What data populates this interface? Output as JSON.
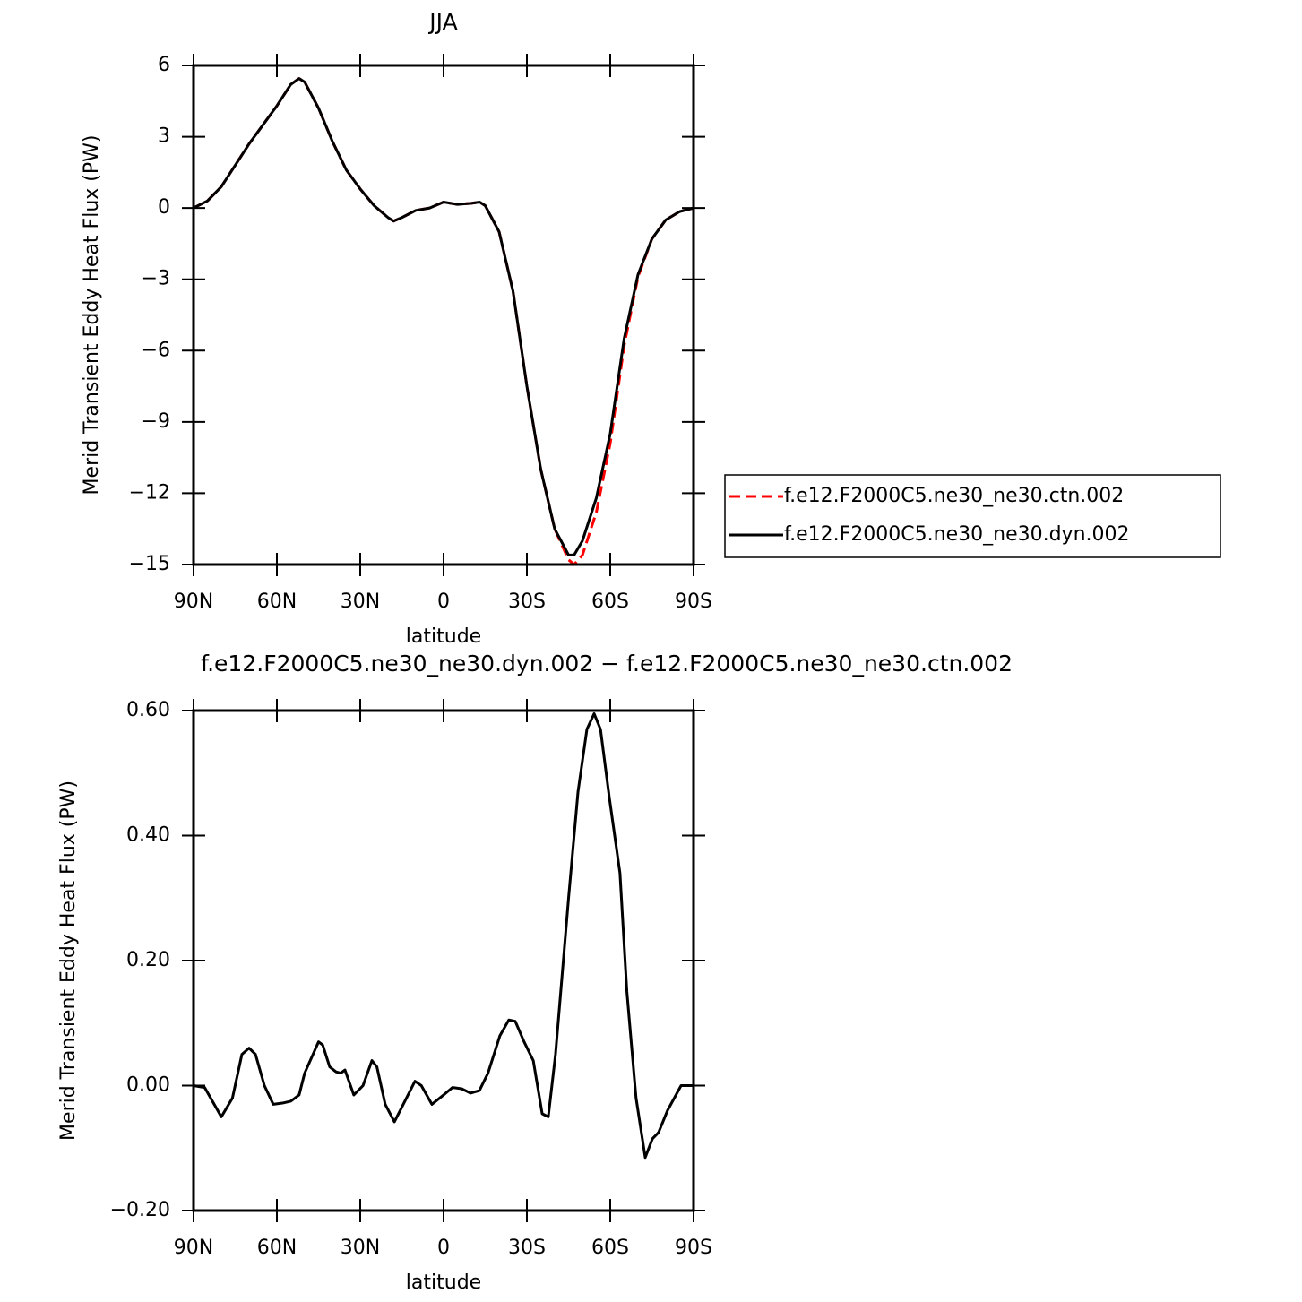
{
  "chart_data": [
    {
      "type": "line",
      "title": "JJA",
      "xlabel": "latitude",
      "ylabel": "Merid Transient Eddy Heat Flux (PW)",
      "x": [
        90,
        85,
        80,
        75,
        70,
        65,
        60,
        55,
        52,
        50,
        45,
        40,
        35,
        30,
        25,
        20,
        18,
        15,
        10,
        5,
        0,
        -5,
        -10,
        -13,
        -15,
        -20,
        -25,
        -30,
        -35,
        -40,
        -45,
        -47,
        -50,
        -55,
        -60,
        -65,
        -70,
        -75,
        -80,
        -85,
        -90
      ],
      "series": [
        {
          "name": "f.e12.F2000C5.ne30_ne30.ctn.002",
          "color": "#ff0000",
          "linestyle": "dashed",
          "values": [
            0,
            0.3,
            0.9,
            1.8,
            2.7,
            3.5,
            4.3,
            5.2,
            5.45,
            5.3,
            4.2,
            2.8,
            1.6,
            0.8,
            0.1,
            -0.4,
            -0.55,
            -0.4,
            -0.1,
            0.0,
            0.25,
            0.15,
            0.2,
            0.25,
            0.1,
            -1.0,
            -3.5,
            -7.5,
            -11.0,
            -13.5,
            -14.8,
            -15.0,
            -14.6,
            -12.8,
            -9.9,
            -5.8,
            -2.9,
            -1.3,
            -0.5,
            -0.15,
            0
          ]
        },
        {
          "name": "f.e12.F2000C5.ne30_ne30.dyn.002",
          "color": "#000000",
          "linestyle": "solid",
          "values": [
            0,
            0.3,
            0.9,
            1.8,
            2.7,
            3.5,
            4.3,
            5.2,
            5.45,
            5.3,
            4.2,
            2.8,
            1.6,
            0.8,
            0.1,
            -0.4,
            -0.55,
            -0.4,
            -0.1,
            0.0,
            0.25,
            0.15,
            0.2,
            0.25,
            0.1,
            -1.0,
            -3.5,
            -7.5,
            -11.0,
            -13.5,
            -14.6,
            -14.6,
            -14.0,
            -12.2,
            -9.5,
            -5.5,
            -2.8,
            -1.3,
            -0.5,
            -0.15,
            0
          ]
        }
      ],
      "xlim": [
        90,
        -90
      ],
      "xticks": [
        {
          "value": 90,
          "label": "90N"
        },
        {
          "value": 60,
          "label": "60N"
        },
        {
          "value": 30,
          "label": "30N"
        },
        0,
        {
          "value": -30,
          "label": "30S"
        },
        {
          "value": -60,
          "label": "60S"
        },
        {
          "value": -90,
          "label": "90S"
        }
      ],
      "ylim": [
        -15,
        6
      ],
      "yticks": [
        {
          "value": -15,
          "label": "−15"
        },
        {
          "value": -12,
          "label": "−12"
        },
        {
          "value": -9,
          "label": "−9"
        },
        {
          "value": -6,
          "label": "−6"
        },
        {
          "value": -3,
          "label": "−3"
        },
        0,
        3,
        6
      ],
      "legend": "right",
      "grid": false
    },
    {
      "type": "line",
      "title": "f.e12.F2000C5.ne30_ne30.dyn.002 − f.e12.F2000C5.ne30_ne30.ctn.002",
      "xlabel": "latitude",
      "ylabel": "Merid Transient Eddy Heat Flux (PW)",
      "x": [
        90,
        86,
        80,
        76,
        72.6,
        70,
        67.7,
        64.5,
        61.3,
        58,
        55,
        52,
        50,
        45,
        43.5,
        41,
        38.7,
        37,
        35.5,
        32.3,
        29,
        25.8,
        24,
        21,
        17.7,
        14.5,
        10.3,
        8,
        4.2,
        0,
        -3.2,
        -6.5,
        -9.7,
        -12.9,
        -16,
        -20.3,
        -23.5,
        -25.8,
        -29,
        -32.3,
        -35.5,
        -37.7,
        -40.3,
        -45,
        -48.4,
        -51.6,
        -54.2,
        -56.5,
        -59.7,
        -63.5,
        -66,
        -69.3,
        -72.6,
        -75.2,
        -77.4,
        -80.6,
        -85.5,
        -90
      ],
      "series": [
        {
          "color": "#000000",
          "linestyle": "solid",
          "values": [
            0,
            -0.003,
            -0.05,
            -0.02,
            0.05,
            0.06,
            0.05,
            0.0,
            -0.03,
            -0.028,
            -0.025,
            -0.015,
            0.02,
            0.07,
            0.065,
            0.03,
            0.022,
            0.02,
            0.025,
            -0.015,
            0.0,
            0.04,
            0.03,
            -0.03,
            -0.058,
            -0.03,
            0.007,
            0.0,
            -0.03,
            -0.015,
            -0.003,
            -0.005,
            -0.012,
            -0.008,
            0.02,
            0.08,
            0.105,
            0.103,
            0.07,
            0.04,
            -0.045,
            -0.05,
            0.05,
            0.3,
            0.47,
            0.57,
            0.595,
            0.57,
            0.46,
            0.34,
            0.15,
            -0.02,
            -0.115,
            -0.085,
            -0.075,
            -0.04,
            0.0,
            0
          ]
        }
      ],
      "xlim": [
        90,
        -90
      ],
      "xticks": [
        {
          "value": 90,
          "label": "90N"
        },
        {
          "value": 60,
          "label": "60N"
        },
        {
          "value": 30,
          "label": "30N"
        },
        0,
        {
          "value": -30,
          "label": "30S"
        },
        {
          "value": -60,
          "label": "60S"
        },
        {
          "value": -90,
          "label": "90S"
        }
      ],
      "ylim": [
        -0.2,
        0.6
      ],
      "yticks": [
        {
          "value": -0.2,
          "label": "−0.20"
        },
        {
          "value": 0,
          "label": "0.00"
        },
        {
          "value": 0.2,
          "label": "0.20"
        },
        {
          "value": 0.4,
          "label": "0.40"
        },
        {
          "value": 0.6,
          "label": "0.60"
        }
      ],
      "grid": false
    }
  ]
}
